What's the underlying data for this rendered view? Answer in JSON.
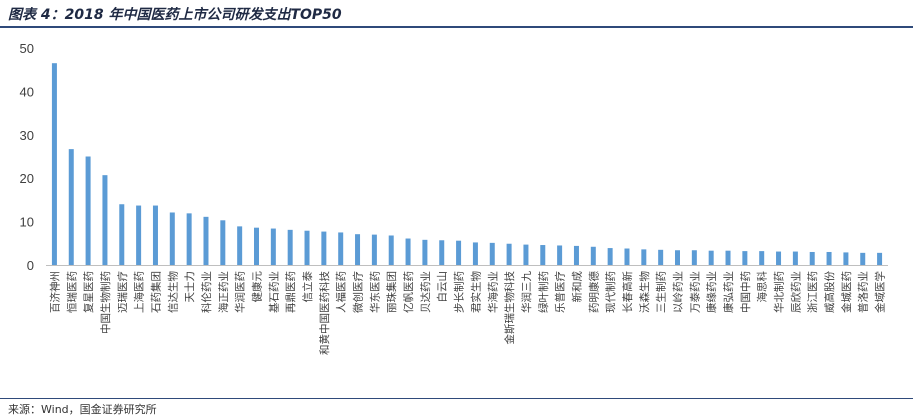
{
  "header": {
    "title": "图表 4：2018 年中国医药上市公司研发支出TOP50"
  },
  "footer": {
    "source": "来源：Wind，国金证券研究所"
  },
  "chart_data": {
    "type": "bar",
    "title": "",
    "xlabel": "",
    "ylabel": "",
    "ylim": [
      0,
      50
    ],
    "yticks": [
      0,
      10,
      20,
      30,
      40,
      50
    ],
    "grid": false,
    "legend": "none",
    "bar_color": "#5b9bd5",
    "categories": [
      "百济神州",
      "恒瑞医药",
      "复星医药",
      "中国生物制药",
      "迈瑞医疗",
      "上海医药",
      "石药集团",
      "信达生物",
      "天士力",
      "科伦药业",
      "海正药业",
      "华润医药",
      "健康元",
      "基石药业",
      "再鼎医药",
      "信立泰",
      "和黄中国医药科技",
      "人福医药",
      "微创医疗",
      "华东医药",
      "丽珠集团",
      "亿帆医药",
      "贝达药业",
      "白云山",
      "步长制药",
      "君实生物",
      "华海药业",
      "金斯瑞生物科技",
      "华润三九",
      "绿叶制药",
      "乐普医疗",
      "新和成",
      "药明康德",
      "现代制药",
      "长春高新",
      "沃森生物",
      "三生制药",
      "以岭药业",
      "万泰药业",
      "康缘药业",
      "康弘药业",
      "中国中药",
      "海思科",
      "华北制药",
      "辰欣药业",
      "浙江医药",
      "威高股份",
      "金城医药",
      "普洛药业",
      "金域医学"
    ],
    "values": [
      46.5,
      26.7,
      25.0,
      20.7,
      14.0,
      13.7,
      13.7,
      12.1,
      11.9,
      11.1,
      10.3,
      8.9,
      8.6,
      8.4,
      8.1,
      7.9,
      7.7,
      7.5,
      7.1,
      7.0,
      6.8,
      6.1,
      5.8,
      5.7,
      5.6,
      5.2,
      5.1,
      4.9,
      4.7,
      4.6,
      4.5,
      4.4,
      4.2,
      3.9,
      3.8,
      3.6,
      3.5,
      3.4,
      3.4,
      3.3,
      3.3,
      3.2,
      3.2,
      3.1,
      3.1,
      3.0,
      3.0,
      2.9,
      2.8,
      2.8
    ]
  }
}
